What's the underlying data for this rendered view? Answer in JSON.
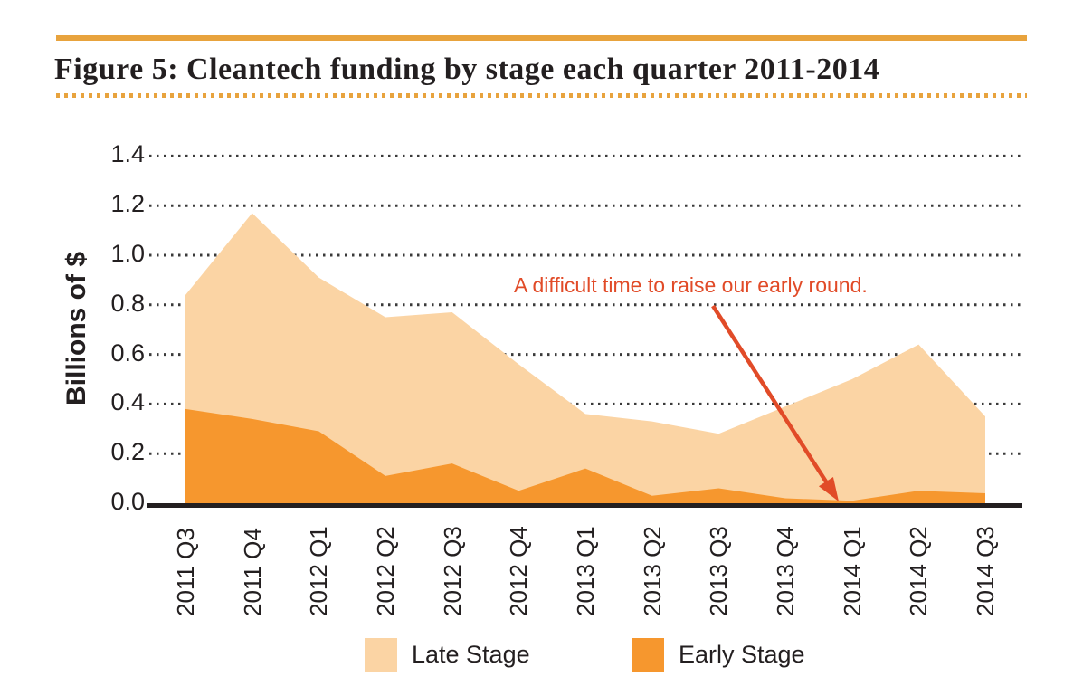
{
  "header": {
    "title": "Figure 5: Cleantech funding by stage each quarter 2011-2014"
  },
  "annotation": {
    "text": "A difficult time to raise our early round.",
    "points_to": "2014 Q1",
    "color": "#e14b28"
  },
  "legend": [
    {
      "label": "Late Stage",
      "color": "#fbd4a4"
    },
    {
      "label": "Early Stage",
      "color": "#f6972e"
    }
  ],
  "colors": {
    "late_stage_fill": "#fbd4a4",
    "early_stage_fill": "#f6972e",
    "rule_orange": "#e8a33d",
    "annotation_red": "#e14b28",
    "gridline": "#3a3a3a",
    "axis": "#231f20",
    "text": "#231f20"
  },
  "chart_data": {
    "type": "area",
    "title": "Figure 5: Cleantech funding by stage each quarter 2011-2014",
    "categories": [
      "2011 Q3",
      "2011 Q4",
      "2012 Q1",
      "2012 Q2",
      "2012 Q3",
      "2012 Q4",
      "2013 Q1",
      "2013 Q2",
      "2013 Q3",
      "2013 Q4",
      "2014 Q1",
      "2014 Q2",
      "2014 Q3"
    ],
    "series": [
      {
        "name": "Late Stage",
        "color": "#fbd4a4",
        "values": [
          0.84,
          1.17,
          0.91,
          0.75,
          0.77,
          0.56,
          0.36,
          0.33,
          0.28,
          0.39,
          0.5,
          0.64,
          0.35
        ]
      },
      {
        "name": "Early Stage",
        "color": "#f6972e",
        "values": [
          0.38,
          0.34,
          0.29,
          0.11,
          0.16,
          0.05,
          0.14,
          0.03,
          0.06,
          0.02,
          0.01,
          0.05,
          0.04
        ]
      }
    ],
    "series_note": "Late Stage values are the upper boundary of the light area as drawn; the Early Stage area overlays it from the zero baseline.",
    "xlabel": "",
    "ylabel": "Billions of $",
    "ylim": [
      0,
      1.4
    ],
    "ytick_step": 0.2,
    "grid": "dotted horizontal gridlines",
    "legend_position": "bottom",
    "annotation": {
      "text": "A difficult time to raise our early round.",
      "points_to": "2014 Q1"
    }
  }
}
